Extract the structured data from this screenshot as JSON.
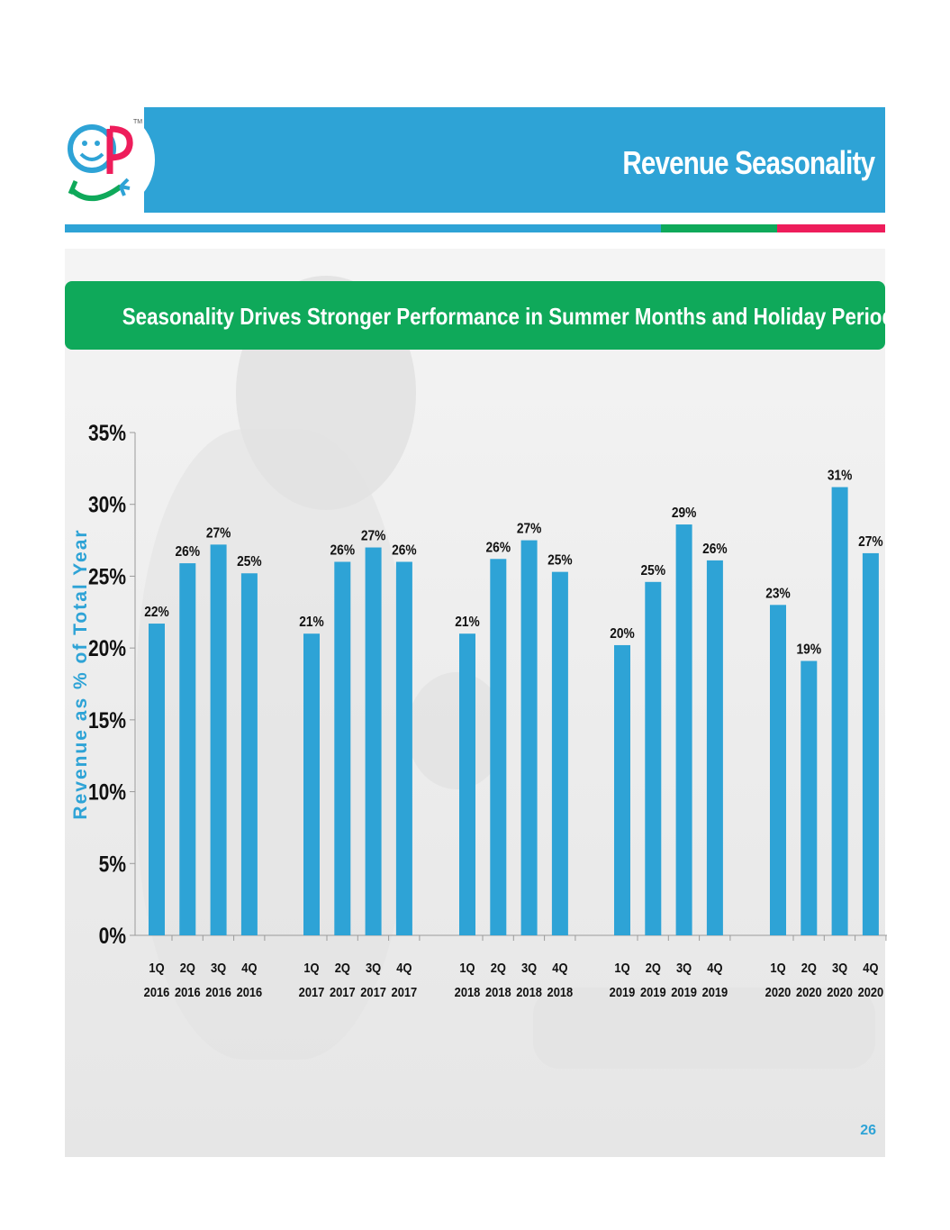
{
  "slide": {
    "title": "Revenue Seasonality",
    "subtitle": "Seasonality Drives Stronger Performance in Summer Months and Holiday Periods",
    "page_number": "26",
    "logo": {
      "icon": "smiley-op-logo-icon",
      "mark": "TM"
    }
  },
  "colors": {
    "accent": "#2ea3d6",
    "green": "#0fa95a",
    "pink": "#ee1d5b"
  },
  "chart_data": {
    "type": "bar",
    "ylabel": "Revenue as % of Total Year",
    "ylim": [
      0,
      35
    ],
    "yticks": [
      "0%",
      "5%",
      "10%",
      "15%",
      "20%",
      "25%",
      "30%",
      "35%"
    ],
    "grid": false,
    "legend": "none",
    "groups": [
      {
        "year": "2016",
        "bars": [
          {
            "quarter": "1Q",
            "value": 21.7,
            "label": "22%"
          },
          {
            "quarter": "2Q",
            "value": 25.9,
            "label": "26%"
          },
          {
            "quarter": "3Q",
            "value": 27.2,
            "label": "27%"
          },
          {
            "quarter": "4Q",
            "value": 25.2,
            "label": "25%"
          }
        ]
      },
      {
        "year": "2017",
        "bars": [
          {
            "quarter": "1Q",
            "value": 21.0,
            "label": "21%"
          },
          {
            "quarter": "2Q",
            "value": 26.0,
            "label": "26%"
          },
          {
            "quarter": "3Q",
            "value": 27.0,
            "label": "27%"
          },
          {
            "quarter": "4Q",
            "value": 26.0,
            "label": "26%"
          }
        ]
      },
      {
        "year": "2018",
        "bars": [
          {
            "quarter": "1Q",
            "value": 21.0,
            "label": "21%"
          },
          {
            "quarter": "2Q",
            "value": 26.2,
            "label": "26%"
          },
          {
            "quarter": "3Q",
            "value": 27.5,
            "label": "27%"
          },
          {
            "quarter": "4Q",
            "value": 25.3,
            "label": "25%"
          }
        ]
      },
      {
        "year": "2019",
        "bars": [
          {
            "quarter": "1Q",
            "value": 20.2,
            "label": "20%"
          },
          {
            "quarter": "2Q",
            "value": 24.6,
            "label": "25%"
          },
          {
            "quarter": "3Q",
            "value": 28.6,
            "label": "29%"
          },
          {
            "quarter": "4Q",
            "value": 26.1,
            "label": "26%"
          }
        ]
      },
      {
        "year": "2020",
        "bars": [
          {
            "quarter": "1Q",
            "value": 23.0,
            "label": "23%"
          },
          {
            "quarter": "2Q",
            "value": 19.1,
            "label": "19%"
          },
          {
            "quarter": "3Q",
            "value": 31.2,
            "label": "31%"
          },
          {
            "quarter": "4Q",
            "value": 26.6,
            "label": "27%"
          }
        ]
      }
    ]
  }
}
